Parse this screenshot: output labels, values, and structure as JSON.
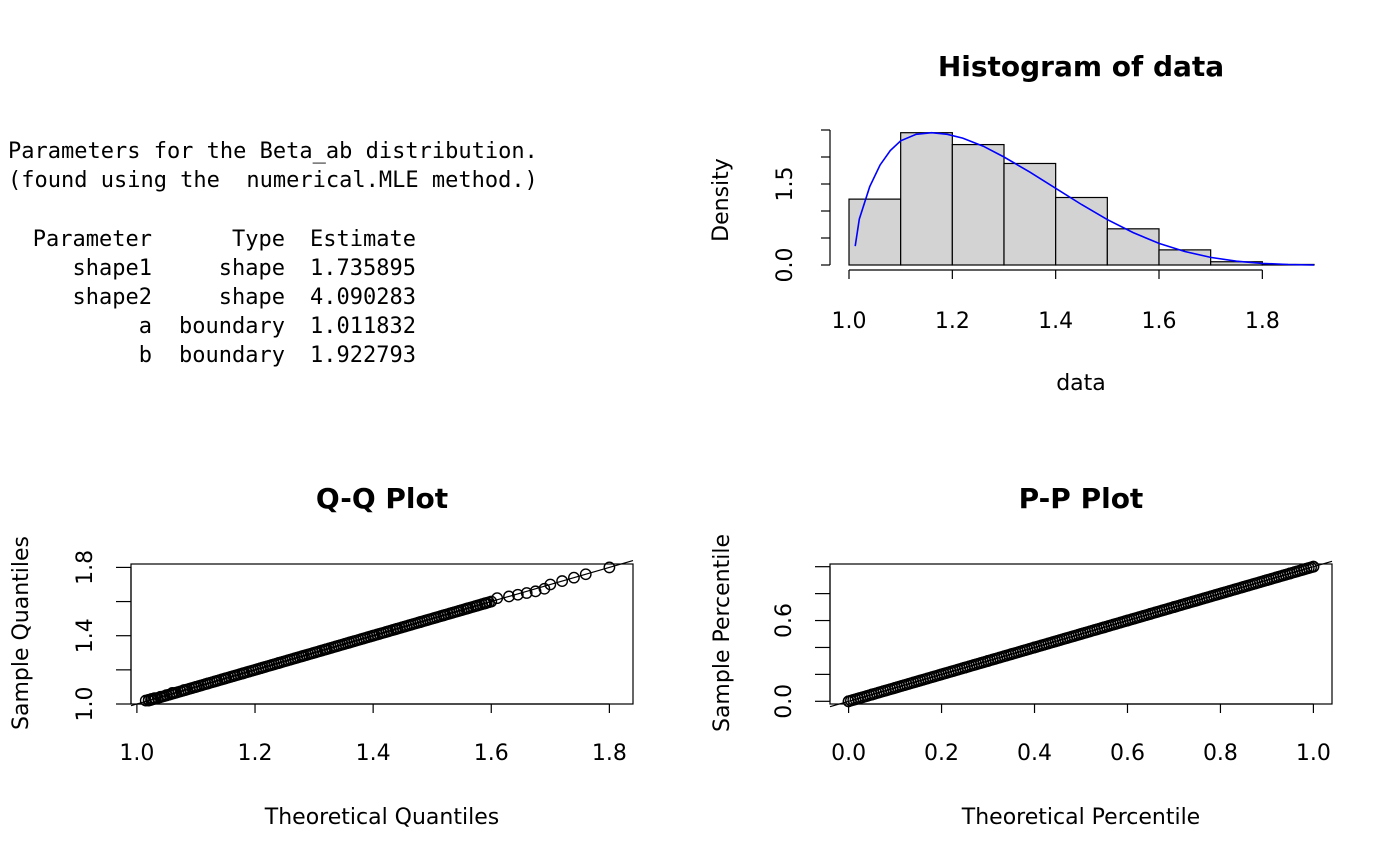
{
  "params_text": {
    "header_line1": "Parameters for the Beta_ab distribution.",
    "header_line2": "(found using the  numerical.MLE method.)",
    "columns": [
      "Parameter",
      "Type",
      "Estimate"
    ],
    "rows": [
      {
        "name": "shape1",
        "type": "shape",
        "estimate": "1.735895"
      },
      {
        "name": "shape2",
        "type": "shape",
        "estimate": "4.090283"
      },
      {
        "name": "a",
        "type": "boundary",
        "estimate": "1.011832"
      },
      {
        "name": "b",
        "type": "boundary",
        "estimate": "1.922793"
      }
    ]
  },
  "chart_data": [
    {
      "type": "bar",
      "title": "Histogram of data",
      "xlabel": "data",
      "ylabel": "Density",
      "bins": [
        [
          1.0,
          1.1
        ],
        [
          1.1,
          1.2
        ],
        [
          1.2,
          1.3
        ],
        [
          1.3,
          1.4
        ],
        [
          1.4,
          1.5
        ],
        [
          1.5,
          1.6
        ],
        [
          1.6,
          1.7
        ],
        [
          1.7,
          1.8
        ],
        [
          1.8,
          1.9
        ]
      ],
      "values": [
        1.22,
        2.45,
        2.23,
        1.88,
        1.25,
        0.67,
        0.28,
        0.06,
        0.01
      ],
      "xticks": [
        "1.0",
        "1.2",
        "1.4",
        "1.6",
        "1.8"
      ],
      "yticks": [
        "0.0",
        "1.5"
      ],
      "ylim": [
        0,
        2.5
      ],
      "bar_color": "#d3d3d3",
      "density_curve": {
        "color": "#0000ff",
        "x": [
          1.012,
          1.02,
          1.04,
          1.06,
          1.08,
          1.1,
          1.13,
          1.16,
          1.19,
          1.22,
          1.26,
          1.3,
          1.35,
          1.4,
          1.45,
          1.5,
          1.55,
          1.6,
          1.65,
          1.7,
          1.75,
          1.8,
          1.85,
          1.9
        ],
        "y": [
          0.35,
          0.85,
          1.45,
          1.85,
          2.12,
          2.3,
          2.42,
          2.45,
          2.42,
          2.35,
          2.2,
          2.0,
          1.72,
          1.42,
          1.12,
          0.84,
          0.6,
          0.4,
          0.25,
          0.14,
          0.07,
          0.03,
          0.01,
          0.0
        ]
      }
    },
    {
      "type": "scatter",
      "title": "Q-Q Plot",
      "xlabel": "Theoretical Quantiles",
      "ylabel": "Sample Quantiles",
      "xlim": [
        0.99,
        1.84
      ],
      "ylim": [
        1.0,
        1.82
      ],
      "xticks": [
        "1.0",
        "1.2",
        "1.4",
        "1.6",
        "1.8"
      ],
      "yticks": [
        "1.0",
        "1.4",
        "1.8"
      ],
      "points": [
        [
          1.015,
          1.02
        ],
        [
          1.02,
          1.025
        ],
        [
          1.025,
          1.03
        ],
        [
          1.03,
          1.034
        ],
        [
          1.04,
          1.042
        ],
        [
          1.05,
          1.052
        ],
        [
          1.06,
          1.065
        ],
        [
          1.08,
          1.082
        ],
        [
          1.1,
          1.1
        ],
        [
          1.12,
          1.12
        ],
        [
          1.15,
          1.15
        ],
        [
          1.18,
          1.18
        ],
        [
          1.21,
          1.21
        ],
        [
          1.24,
          1.24
        ],
        [
          1.28,
          1.28
        ],
        [
          1.32,
          1.32
        ],
        [
          1.36,
          1.36
        ],
        [
          1.4,
          1.4
        ],
        [
          1.44,
          1.44
        ],
        [
          1.48,
          1.48
        ],
        [
          1.52,
          1.52
        ],
        [
          1.56,
          1.56
        ],
        [
          1.59,
          1.59
        ],
        [
          1.61,
          1.62
        ],
        [
          1.63,
          1.63
        ],
        [
          1.645,
          1.64
        ],
        [
          1.66,
          1.65
        ],
        [
          1.675,
          1.66
        ],
        [
          1.69,
          1.675
        ],
        [
          1.7,
          1.7
        ],
        [
          1.72,
          1.72
        ],
        [
          1.74,
          1.74
        ],
        [
          1.76,
          1.76
        ],
        [
          1.8,
          1.8
        ]
      ],
      "reference_line": {
        "from": [
          0.99,
          0.99
        ],
        "to": [
          1.84,
          1.84
        ]
      }
    },
    {
      "type": "scatter",
      "title": "P-P Plot",
      "xlabel": "Theoretical Percentile",
      "ylabel": "Sample Percentile",
      "xlim": [
        -0.04,
        1.04
      ],
      "ylim": [
        -0.02,
        1.02
      ],
      "xticks": [
        "0.0",
        "0.2",
        "0.4",
        "0.6",
        "0.8",
        "1.0"
      ],
      "yticks": [
        "0.0",
        "0.6"
      ],
      "points": [
        [
          0.0,
          0.0
        ],
        [
          0.02,
          0.02
        ],
        [
          0.05,
          0.05
        ],
        [
          0.1,
          0.1
        ],
        [
          0.15,
          0.15
        ],
        [
          0.2,
          0.2
        ],
        [
          0.25,
          0.25
        ],
        [
          0.3,
          0.3
        ],
        [
          0.35,
          0.35
        ],
        [
          0.4,
          0.4
        ],
        [
          0.45,
          0.45
        ],
        [
          0.5,
          0.5
        ],
        [
          0.55,
          0.55
        ],
        [
          0.6,
          0.6
        ],
        [
          0.65,
          0.65
        ],
        [
          0.7,
          0.7
        ],
        [
          0.75,
          0.75
        ],
        [
          0.8,
          0.8
        ],
        [
          0.85,
          0.85
        ],
        [
          0.9,
          0.9
        ],
        [
          0.95,
          0.95
        ],
        [
          0.98,
          0.98
        ],
        [
          1.0,
          1.0
        ]
      ],
      "reference_line": {
        "from": [
          -0.04,
          -0.04
        ],
        "to": [
          1.04,
          1.04
        ]
      }
    }
  ]
}
